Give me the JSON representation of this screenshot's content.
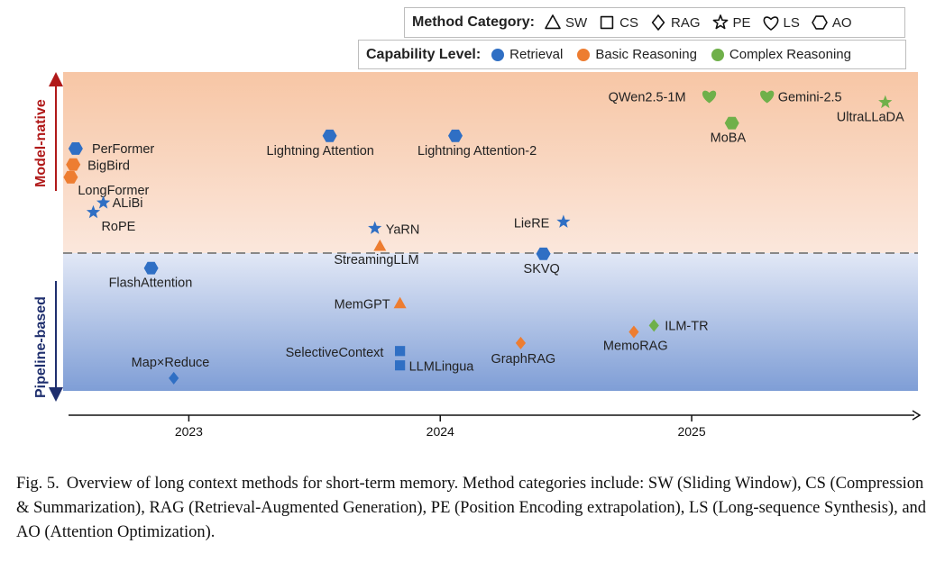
{
  "legend": {
    "method_title": "Method Category:",
    "methods": [
      {
        "shape": "triangle-icon",
        "label": "SW"
      },
      {
        "shape": "square-icon",
        "label": "CS"
      },
      {
        "shape": "diamond-icon",
        "label": "RAG"
      },
      {
        "shape": "star-icon",
        "label": "PE"
      },
      {
        "shape": "heart-icon",
        "label": "LS"
      },
      {
        "shape": "hexagon-icon",
        "label": "AO"
      }
    ],
    "level_title": "Capability Level:",
    "levels": [
      {
        "label": "Retrieval",
        "color": "#2f6fc4"
      },
      {
        "label": "Basic Reasoning",
        "color": "#ed7d31"
      },
      {
        "label": "Complex Reasoning",
        "color": "#6fb04a"
      }
    ]
  },
  "chart_data": {
    "type": "scatter",
    "region_labels": {
      "top": "Model-native",
      "bottom": "Pipeline-based"
    },
    "x_ticks": [
      "2023",
      "2024",
      "2025"
    ],
    "x_range": [
      2022.5,
      2025.9
    ],
    "y_range": [
      0,
      100
    ],
    "points": [
      {
        "name": "PerFormer",
        "x": 2022.55,
        "y": 76,
        "shape": "hexagon",
        "level": "Retrieval"
      },
      {
        "name": "BigBird",
        "x": 2022.54,
        "y": 71,
        "shape": "hexagon",
        "level": "Basic Reasoning"
      },
      {
        "name": "LongFormer",
        "x": 2022.53,
        "y": 67,
        "shape": "hexagon",
        "level": "Basic Reasoning"
      },
      {
        "name": "ALiBi",
        "x": 2022.66,
        "y": 59,
        "shape": "star",
        "level": "Retrieval"
      },
      {
        "name": "RoPE",
        "x": 2022.62,
        "y": 56,
        "shape": "star",
        "level": "Retrieval"
      },
      {
        "name": "Lightning Attention",
        "x": 2023.56,
        "y": 80,
        "shape": "hexagon",
        "level": "Retrieval"
      },
      {
        "name": "Lightning Attention-2",
        "x": 2024.06,
        "y": 80,
        "shape": "hexagon",
        "level": "Retrieval"
      },
      {
        "name": "YaRN",
        "x": 2023.74,
        "y": 51,
        "shape": "star",
        "level": "Retrieval"
      },
      {
        "name": "StreamingLLM",
        "x": 2023.76,
        "y": 45.5,
        "shape": "triangle",
        "level": "Basic Reasoning"
      },
      {
        "name": "LieRE",
        "x": 2024.49,
        "y": 53,
        "shape": "star",
        "level": "Retrieval"
      },
      {
        "name": "SKVQ",
        "x": 2024.41,
        "y": 43,
        "shape": "hexagon",
        "level": "Retrieval"
      },
      {
        "name": "QWen2.5-1M",
        "x": 2025.07,
        "y": 92.5,
        "shape": "heart",
        "level": "Complex Reasoning"
      },
      {
        "name": "Gemini-2.5",
        "x": 2025.3,
        "y": 92.5,
        "shape": "heart",
        "level": "Complex Reasoning"
      },
      {
        "name": "MoBA",
        "x": 2025.16,
        "y": 84,
        "shape": "hexagon",
        "level": "Complex Reasoning"
      },
      {
        "name": "UltraLLaDA",
        "x": 2025.77,
        "y": 90.5,
        "shape": "star",
        "level": "Complex Reasoning"
      },
      {
        "name": "FlashAttention",
        "x": 2022.85,
        "y": 38.5,
        "shape": "hexagon",
        "level": "Retrieval"
      },
      {
        "name": "MemGPT",
        "x": 2023.84,
        "y": 27.5,
        "shape": "triangle",
        "level": "Basic Reasoning"
      },
      {
        "name": "SelectiveContext",
        "x": 2023.84,
        "y": 12.5,
        "shape": "square",
        "level": "Retrieval"
      },
      {
        "name": "LLMLingua",
        "x": 2023.84,
        "y": 8,
        "shape": "square",
        "level": "Retrieval"
      },
      {
        "name": "Map×Reduce",
        "x": 2022.94,
        "y": 4,
        "shape": "diamond",
        "level": "Retrieval"
      },
      {
        "name": "GraphRAG",
        "x": 2024.32,
        "y": 15,
        "shape": "diamond",
        "level": "Basic Reasoning"
      },
      {
        "name": "MemoRAG",
        "x": 2024.77,
        "y": 18.5,
        "shape": "diamond",
        "level": "Basic Reasoning"
      },
      {
        "name": "ILM-TR",
        "x": 2024.85,
        "y": 20.5,
        "shape": "diamond",
        "level": "Complex Reasoning"
      }
    ]
  },
  "caption": {
    "label": "Fig. 5.",
    "text": "Overview of long context methods for short-term memory. Method categories include: SW (Sliding Window), CS (Compression & Summarization), RAG (Retrieval-Augmented Generation), PE (Position Encoding extrapolation), LS (Long-sequence Synthesis), and AO (Attention Optimization)."
  }
}
